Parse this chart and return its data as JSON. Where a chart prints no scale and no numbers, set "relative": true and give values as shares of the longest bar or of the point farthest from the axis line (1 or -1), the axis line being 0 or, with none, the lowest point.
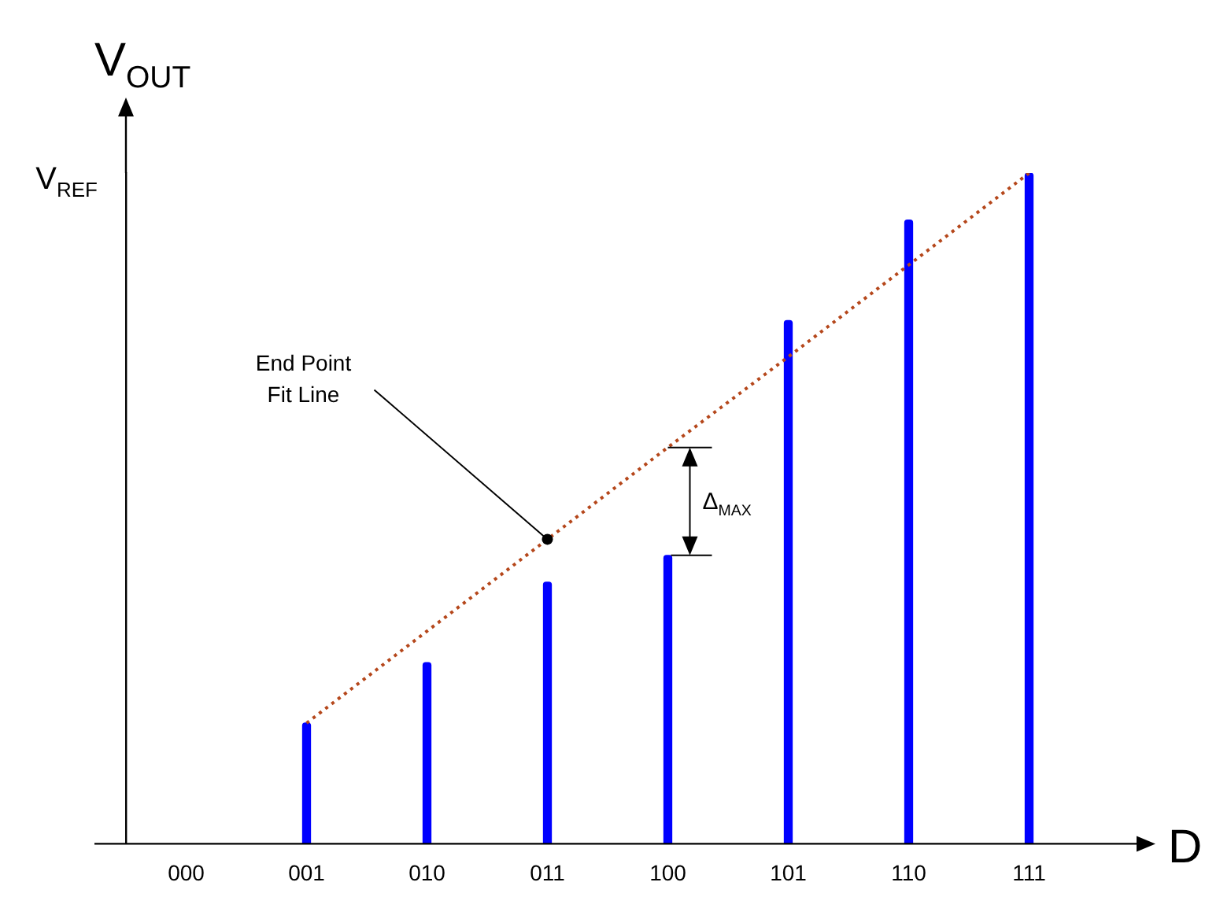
{
  "chart_data": {
    "type": "bar",
    "ylabel": "V$_{OUT}$",
    "xlabel": "D",
    "relative": true,
    "grid": false,
    "legend": false,
    "categories": [
      "000",
      "001",
      "010",
      "011",
      "100",
      "101",
      "110",
      "111"
    ],
    "series": [
      {
        "color": "#0000ff",
        "values": [
          null,
          0.18,
          0.27,
          0.39,
          0.43,
          0.78,
          0.93,
          1
        ]
      },
      {
        "type": "line",
        "color": "#b5471b",
        "line_style": "dotted",
        "marker": "none",
        "values": [
          null,
          0.18,
          0.317,
          0.454,
          0.591,
          0.726,
          0.863,
          1
        ]
      }
    ],
    "annotations": [
      "V$_{REF}$",
      "End Point Fit Line",
      "Δ$_{MAX}$"
    ]
  }
}
